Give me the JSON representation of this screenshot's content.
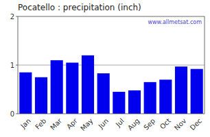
{
  "chart_data": {
    "type": "bar",
    "title": "Pocatello : precipitation (inch)",
    "categories": [
      "Jan",
      "Feb",
      "Mar",
      "Apr",
      "May",
      "Jun",
      "Jul",
      "Aug",
      "Sep",
      "Oct",
      "Nov",
      "Dec"
    ],
    "values": [
      0.85,
      0.75,
      1.1,
      1.05,
      1.2,
      0.83,
      0.45,
      0.48,
      0.65,
      0.7,
      0.97,
      0.92
    ],
    "color": "#0000EE",
    "ylim": [
      0,
      2
    ],
    "yticks": [
      0,
      1,
      2
    ],
    "reference_line": 1.0,
    "annotation": "www.allmetsat.com",
    "grid": false
  }
}
